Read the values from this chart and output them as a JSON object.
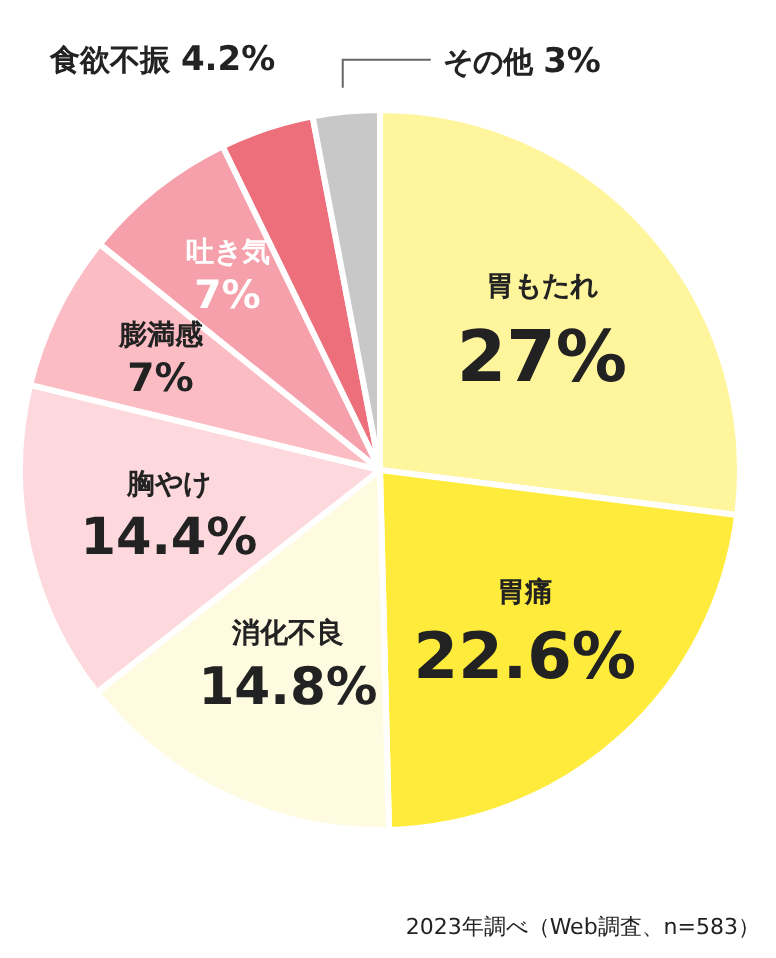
{
  "chart_data": {
    "type": "pie",
    "categories": [
      "胃もたれ",
      "胃痛",
      "消化不良",
      "胸やけ",
      "膨満感",
      "吐き気",
      "食欲不振",
      "その他"
    ],
    "values": [
      27,
      22.6,
      14.8,
      14.4,
      7,
      7,
      4.2,
      3
    ],
    "colors": [
      "#fff59d",
      "#ffeb3b",
      "#fffbe0",
      "#fdd8dc",
      "#fbbcc3",
      "#f5a0aa",
      "#ec6f7b",
      "#c8c8c8"
    ],
    "value_labels": [
      "27%",
      "22.6%",
      "14.8%",
      "14.4%",
      "7%",
      "7%",
      "4.2%",
      "3%"
    ],
    "annotations": [
      "2023年調べ（Web調査、n=583）"
    ]
  }
}
